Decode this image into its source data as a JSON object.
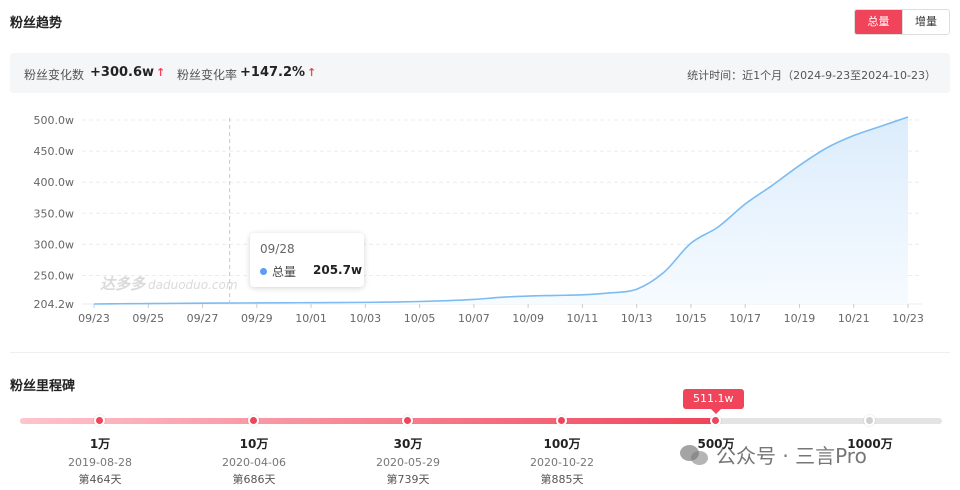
{
  "header": {
    "title": "粉丝趋势",
    "toggle": {
      "total": "总量",
      "increment": "增量"
    }
  },
  "summary": {
    "change_count_label": "粉丝变化数",
    "change_count_value": "+300.6w",
    "change_rate_label": "粉丝变化率",
    "change_rate_value": "+147.2%",
    "arrow": "↑",
    "stat_time": "统计时间：近1个月（2024-9-23至2024-10-23）"
  },
  "tooltip": {
    "date": "09/28",
    "series": "总量",
    "value": "205.7w"
  },
  "watermark": {
    "main": "达多多",
    "sub": "daduoduo.com"
  },
  "chart_data": {
    "type": "area",
    "x_ticks": [
      "09/23",
      "09/25",
      "09/27",
      "09/29",
      "10/01",
      "10/03",
      "10/05",
      "10/07",
      "10/09",
      "10/11",
      "10/13",
      "10/15",
      "10/17",
      "10/19",
      "10/21",
      "10/23"
    ],
    "y_ticks": [
      "204.2w",
      "250.0w",
      "300.0w",
      "350.0w",
      "400.0w",
      "450.0w",
      "500.0w"
    ],
    "y_tick_values": [
      204.2,
      250,
      300,
      350,
      400,
      450,
      500
    ],
    "ylim": [
      204.2,
      500
    ],
    "series": [
      {
        "dates": [
          "09/23",
          "09/24",
          "09/25",
          "09/26",
          "09/27",
          "09/28",
          "09/29",
          "09/30",
          "10/01",
          "10/02",
          "10/03",
          "10/04",
          "10/05",
          "10/06",
          "10/07",
          "10/08",
          "10/09",
          "10/10",
          "10/11",
          "10/12",
          "10/13",
          "10/14",
          "10/15",
          "10/16",
          "10/17",
          "10/18",
          "10/19",
          "10/20",
          "10/21",
          "10/22",
          "10/23"
        ],
        "values": [
          204.2,
          204.6,
          204.9,
          205.2,
          205.5,
          205.7,
          205.9,
          206.1,
          206.3,
          206.5,
          206.8,
          207.3,
          208.2,
          209.5,
          211.5,
          215.0,
          217.0,
          218.0,
          219.0,
          222.0,
          228.0,
          255.0,
          302.0,
          328.0,
          365.0,
          395.0,
          427.0,
          455.0,
          475.0,
          490.0,
          504.8
        ]
      }
    ],
    "highlight_x": "09/28",
    "colors": {
      "line": "#7cbcf2",
      "fill_top": "#dcecfc",
      "fill_bottom": "#f6fbff",
      "crosshair": "#c8c8c8",
      "grid": "#ececec"
    }
  },
  "milestones": {
    "title": "粉丝里程碑",
    "current_badge": "511.1w",
    "items": [
      {
        "label": "1万",
        "date": "2019-08-28",
        "days": "第464天",
        "reached": true
      },
      {
        "label": "10万",
        "date": "2020-04-06",
        "days": "第686天",
        "reached": true
      },
      {
        "label": "30万",
        "date": "2020-05-29",
        "days": "第739天",
        "reached": true
      },
      {
        "label": "100万",
        "date": "2020-10-22",
        "days": "第885天",
        "reached": true
      },
      {
        "label": "500万",
        "date": "",
        "days": "",
        "reached": true
      },
      {
        "label": "1000万",
        "date": "",
        "days": "",
        "reached": false
      }
    ],
    "progress_fraction": 0.75
  },
  "wechat_watermark": {
    "text": "公众号 · 三言Pro"
  }
}
